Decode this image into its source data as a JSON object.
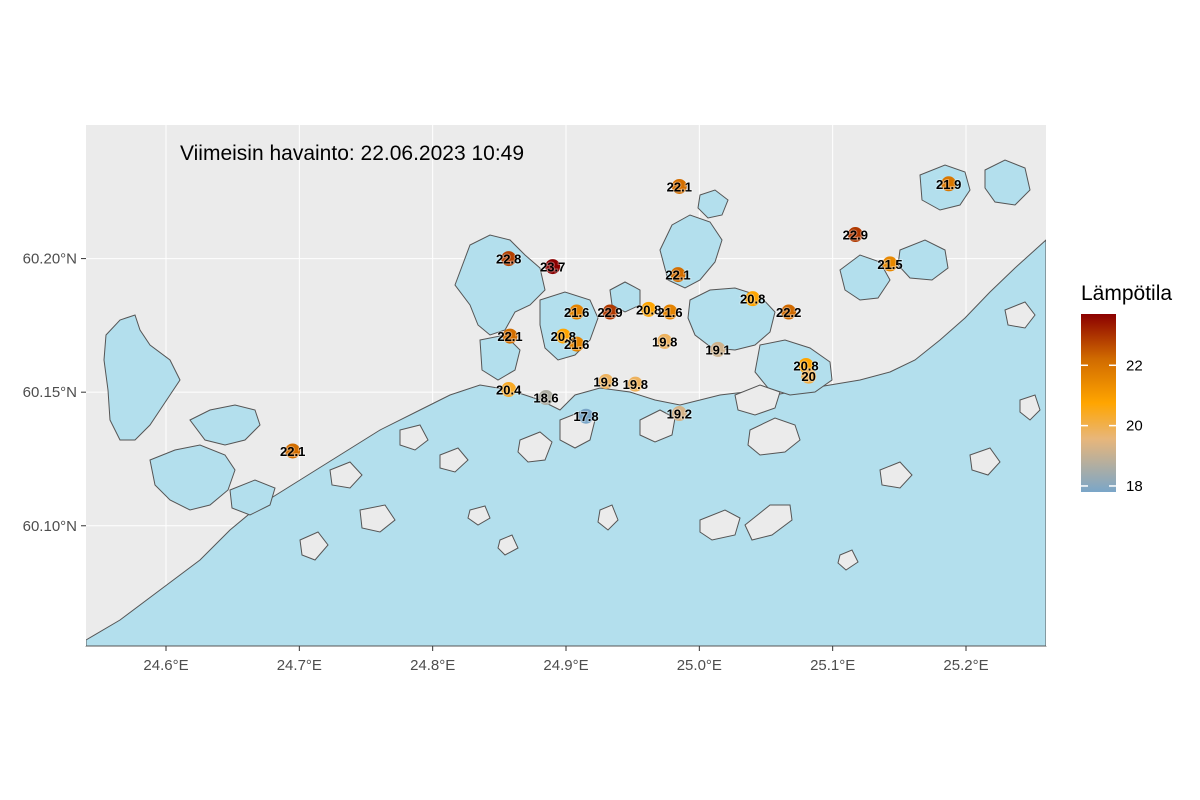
{
  "map": {
    "title": "Viimeisin havainto: 22.06.2023 10:49",
    "x_axis": {
      "ticks": [
        "24.6°E",
        "24.7°E",
        "24.8°E",
        "24.9°E",
        "25.0°E",
        "25.1°E",
        "25.2°E"
      ],
      "tick_values": [
        24.6,
        24.7,
        24.8,
        24.9,
        25.0,
        25.1,
        25.2
      ]
    },
    "y_axis": {
      "ticks": [
        "60.10°N",
        "60.15°N",
        "60.20°N"
      ],
      "tick_values": [
        60.1,
        60.15,
        60.2
      ]
    },
    "colors": {
      "panel": "#ebebeb",
      "water": "#b3dfed",
      "coast": "#555555",
      "grid": "#ffffff"
    },
    "legend": {
      "title": "Lämpötila",
      "ticks": [
        "18",
        "20",
        "22"
      ],
      "tick_values": [
        18,
        20,
        22
      ],
      "range": [
        17.8,
        23.7
      ],
      "gradient": [
        "#7aa6c8",
        "#e8b67a",
        "#ffa500",
        "#d06a00",
        "#8b0000"
      ]
    }
  },
  "chart_data": {
    "type": "scatter",
    "xlim": [
      24.54,
      25.26
    ],
    "ylim": [
      60.055,
      60.25
    ],
    "x": [
      24.985,
      24.695,
      24.857,
      24.858,
      24.89,
      24.908,
      24.898,
      24.908,
      24.933,
      24.962,
      24.978,
      24.974,
      24.93,
      24.952,
      24.984,
      25.014,
      25.04,
      25.067,
      25.08,
      25.082,
      24.857,
      24.885,
      24.915,
      24.985,
      25.117,
      25.143,
      25.187
    ],
    "values": [
      22.1,
      22.1,
      22.8,
      22.1,
      23.7,
      21.6,
      20.8,
      21.6,
      22.9,
      20.8,
      21.6,
      19.8,
      19.8,
      19.8,
      22.1,
      19.1,
      20.8,
      22.2,
      20.8,
      20.0,
      20.4,
      18.6,
      17.8,
      19.2,
      22.9,
      21.5,
      21.9
    ],
    "labels": [
      "22.1",
      "22.1",
      "22.8",
      "22.1",
      "23.7",
      "21.6",
      "20.8",
      "21.6",
      "22.9",
      "20.8",
      "21.6",
      "19.8",
      "19.8",
      "19.8",
      "22.1",
      "19.1",
      "20.8",
      "22.2",
      "20.8",
      "20",
      "20.4",
      "18.6",
      "17.8",
      "19.2",
      "22.9",
      "21.5",
      "21.9"
    ],
    "y": [
      60.227,
      60.128,
      60.2,
      60.171,
      60.197,
      60.18,
      60.171,
      60.168,
      60.18,
      60.181,
      60.18,
      60.169,
      60.154,
      60.153,
      60.194,
      60.166,
      60.185,
      60.18,
      60.16,
      60.156,
      60.151,
      60.148,
      60.141,
      60.142,
      60.209,
      60.198,
      60.228
    ]
  }
}
